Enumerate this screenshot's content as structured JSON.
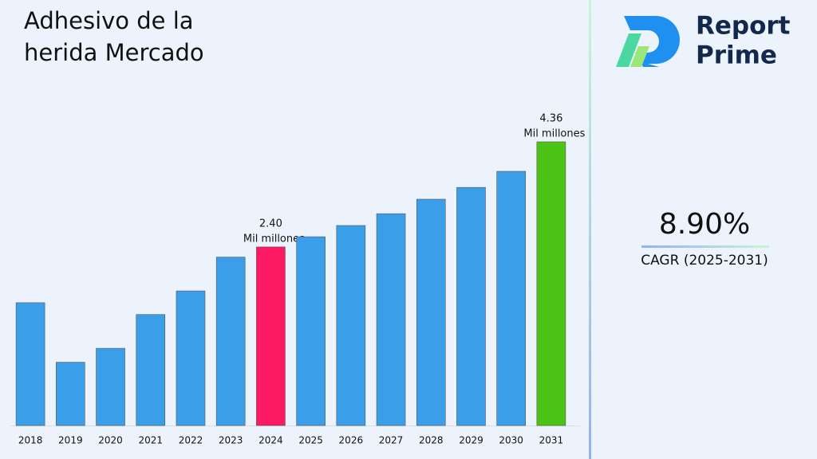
{
  "chart_data": {
    "type": "bar",
    "title": "Adhesivo de la herida Mercado",
    "categories": [
      "2018",
      "2019",
      "2020",
      "2021",
      "2022",
      "2023",
      "2024",
      "2025",
      "2026",
      "2027",
      "2028",
      "2029",
      "2030",
      "2031"
    ],
    "values": [
      1.36,
      0.25,
      0.51,
      1.14,
      1.58,
      2.21,
      2.4,
      2.59,
      2.8,
      3.02,
      3.29,
      3.51,
      3.81,
      4.36
    ],
    "value_labels": [
      null,
      null,
      null,
      null,
      null,
      null,
      "2.40",
      null,
      null,
      null,
      null,
      null,
      null,
      "4.36"
    ],
    "unit_label": "Mil millones",
    "colors": [
      "#3a9fe8",
      "#3a9fe8",
      "#3a9fe8",
      "#3a9fe8",
      "#3a9fe8",
      "#3a9fe8",
      "#fc1a64",
      "#3a9fe8",
      "#3a9fe8",
      "#3a9fe8",
      "#3a9fe8",
      "#3a9fe8",
      "#3a9fe8",
      "#4cc416"
    ],
    "ylim": [
      -0.93,
      5.37
    ]
  },
  "cagr": {
    "value": "8.90%",
    "label": "CAGR (2025-2031)"
  },
  "logo": {
    "line1": "Report",
    "line2": "Prime"
  }
}
